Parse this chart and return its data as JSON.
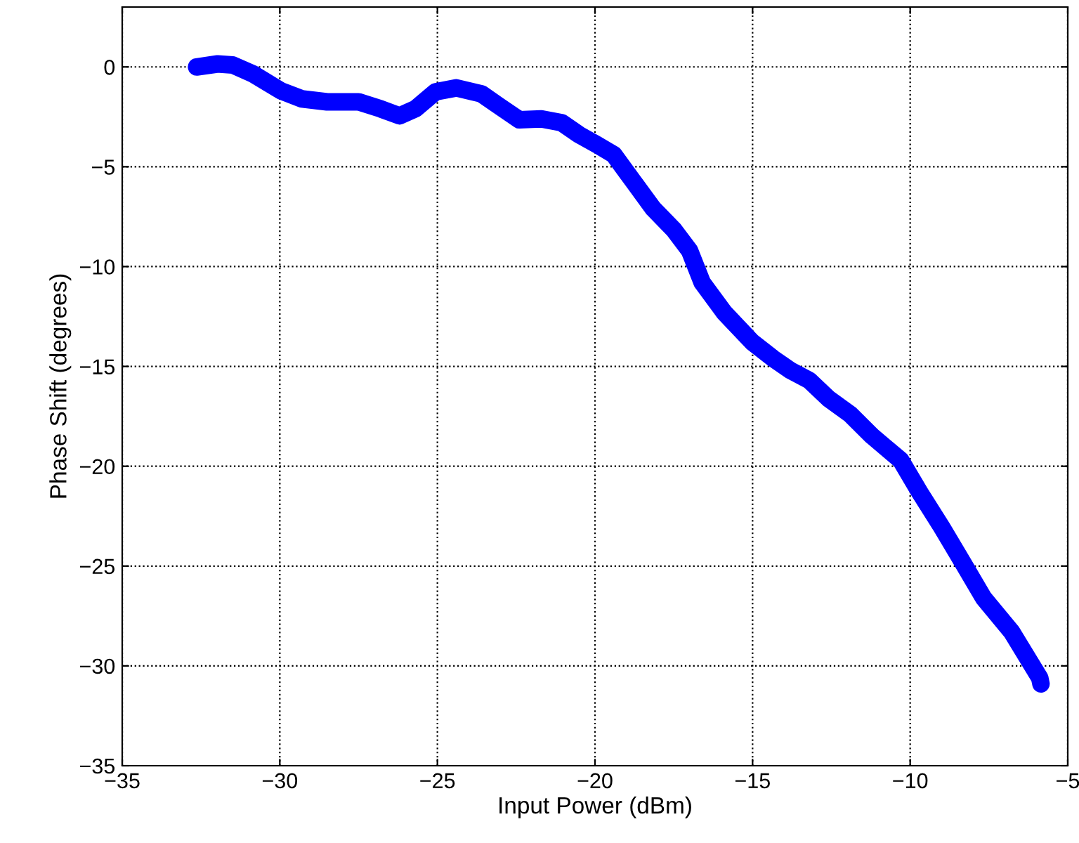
{
  "chart_data": {
    "type": "line",
    "xlabel": "Input Power (dBm)",
    "ylabel": "Phase Shift (degrees)",
    "xlim": [
      -35,
      -5
    ],
    "ylim": [
      -35,
      3
    ],
    "xticks": [
      -35,
      -30,
      -25,
      -20,
      -15,
      -10,
      -5
    ],
    "yticks": [
      -35,
      -30,
      -25,
      -20,
      -15,
      -10,
      -5,
      0
    ],
    "grid": true,
    "line_style": "solid",
    "series": [
      {
        "color": "#0000ff",
        "x": [
          -32.64,
          -31.97,
          -31.5,
          -30.85,
          -29.96,
          -29.3,
          -28.5,
          -27.5,
          -26.8,
          -26.2,
          -25.7,
          -25.06,
          -24.4,
          -23.6,
          -23.05,
          -22.4,
          -21.7,
          -21.05,
          -20.5,
          -19.93,
          -19.4,
          -18.8,
          -18.15,
          -17.5,
          -17.0,
          -16.6,
          -15.9,
          -15.0,
          -14.35,
          -13.8,
          -13.2,
          -12.6,
          -11.9,
          -11.2,
          -10.3,
          -9.7,
          -9.0,
          -8.34,
          -7.67,
          -6.78,
          -5.89,
          -5.85
        ],
        "values": [
          0,
          0.15,
          0.1,
          -0.35,
          -1.2,
          -1.6,
          -1.75,
          -1.75,
          -2.1,
          -2.45,
          -2.1,
          -1.25,
          -1.05,
          -1.35,
          -1.95,
          -2.65,
          -2.6,
          -2.8,
          -3.4,
          -3.9,
          -4.4,
          -5.7,
          -7.1,
          -8.15,
          -9.2,
          -10.8,
          -12.3,
          -13.8,
          -14.6,
          -15.2,
          -15.7,
          -16.6,
          -17.4,
          -18.5,
          -19.7,
          -21.3,
          -23.05,
          -24.8,
          -26.6,
          -28.3,
          -30.6,
          -30.9
        ]
      }
    ]
  }
}
